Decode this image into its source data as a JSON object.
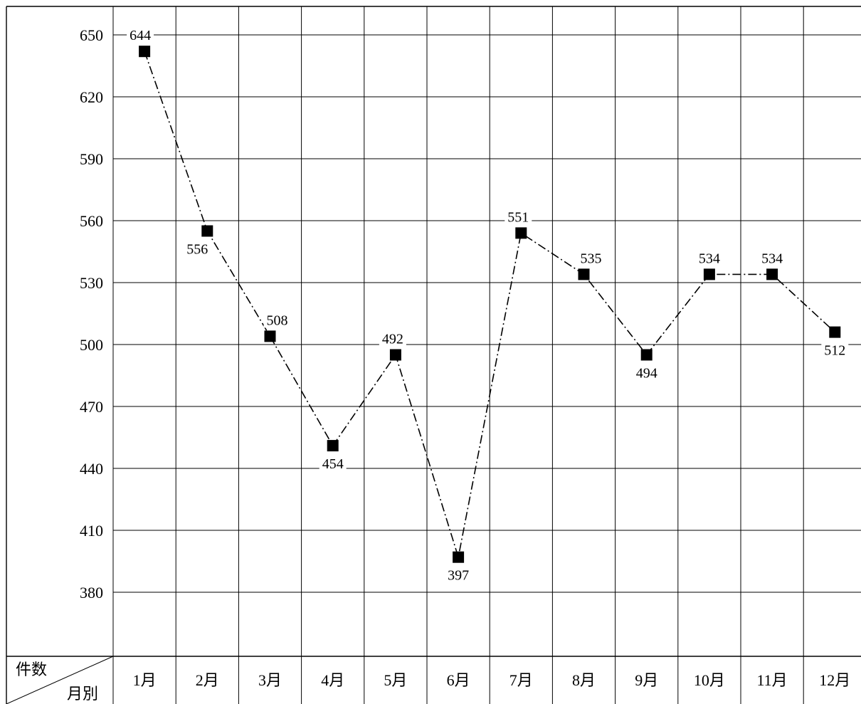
{
  "chart_data": {
    "type": "line",
    "categories": [
      "1月",
      "2月",
      "3月",
      "4月",
      "5月",
      "6月",
      "7月",
      "8月",
      "9月",
      "10月",
      "11月",
      "12月"
    ],
    "values": [
      644,
      556,
      508,
      454,
      492,
      397,
      551,
      535,
      494,
      534,
      534,
      512
    ],
    "plotted_values": [
      642,
      555,
      504,
      451,
      495,
      397,
      554,
      534,
      495,
      534,
      534,
      506
    ],
    "ylim": [
      350,
      660
    ],
    "yticks": [
      380,
      410,
      440,
      470,
      500,
      530,
      560,
      590,
      620,
      650
    ],
    "ytick_labels": [
      "380",
      "410",
      "440",
      "470",
      "500",
      "530",
      "560",
      "590",
      "620",
      "650"
    ],
    "data_labels": [
      "644",
      "556",
      "508",
      "454",
      "492",
      "397",
      "551",
      "535",
      "494",
      "534",
      "534",
      "512"
    ],
    "corner_header": {
      "top": "件数",
      "bottom": "月別"
    },
    "grid": true,
    "legend": "none",
    "marker": "square",
    "line_style": "dash-dot"
  }
}
